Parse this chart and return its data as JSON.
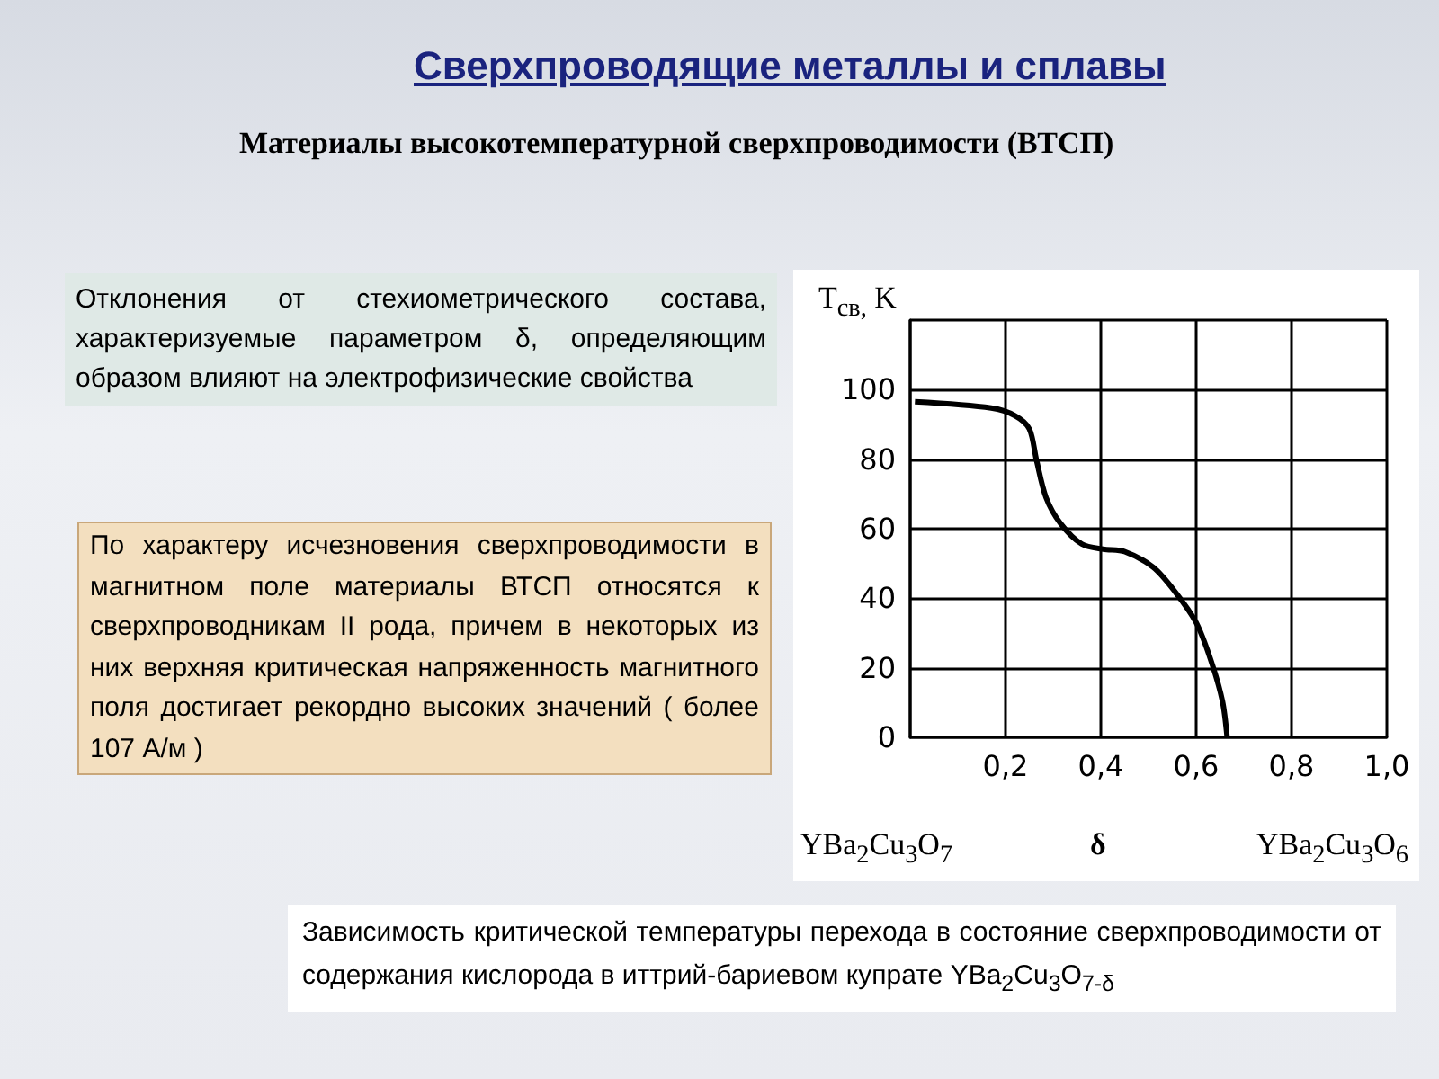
{
  "chart_data": {
    "type": "line",
    "title": "Сверхпроводящие металлы и сплавы",
    "subtitle": "Материалы высокотемпературной сверхпроводимости (ВТСП)",
    "ylabel": "T$_{св,}$ K",
    "xlabel": "δ",
    "annotations": [
      "Отклонения от стехиометрического состава, характеризуемые параметром δ, определяющим образом влияют на электрофизические свойства",
      "По характеру исчезновения сверхпроводимости в магнитном поле материалы ВТСП относятся к сверхпроводникам II рода, причем в некоторых из них верхняя критическая напряженность магнитного поля достигает рекордно высоких значений ( более 107 А/м )",
      "YBa$_{2}$Cu$_{3}$O$_{7}$",
      "YBa$_{2}$Cu$_{3}$O$_{6}$",
      "Зависимость критической температуры перехода в состояние сверхпроводимости от содержания кислорода в иттрий-бариевом купрате YBa$_{2}$Cu$_{3}$O$_{7-δ}$"
    ],
    "x": [
      0.01,
      0.17,
      0.22,
      0.25,
      0.265,
      0.285,
      0.315,
      0.36,
      0.405,
      0.45,
      0.51,
      0.555,
      0.6,
      0.63,
      0.655,
      0.665
    ],
    "series": [
      {
        "color": "#000000",
        "values": [
          96.5,
          94.7,
          92.5,
          88.7,
          79.7,
          69,
          61.6,
          55.6,
          54.1,
          53.4,
          48.9,
          42,
          33,
          22.5,
          10.5,
          0
        ]
      }
    ],
    "xlim": [
      0,
      1
    ],
    "xticks": [
      {
        "value": 0,
        "label": null
      },
      {
        "value": 0.2,
        "label": "0,2"
      },
      {
        "value": 0.4,
        "label": "0,4"
      },
      {
        "value": 0.6,
        "label": "0,6"
      },
      {
        "value": 0.8,
        "label": "0,8"
      },
      {
        "value": 1,
        "label": "1,0"
      }
    ],
    "ylim": [
      0,
      120
    ],
    "yticks": [
      0,
      20,
      40,
      60,
      80,
      100,
      {
        "value": 120,
        "label": null
      }
    ],
    "grid": true,
    "marker": "none",
    "line_style": "solid"
  }
}
